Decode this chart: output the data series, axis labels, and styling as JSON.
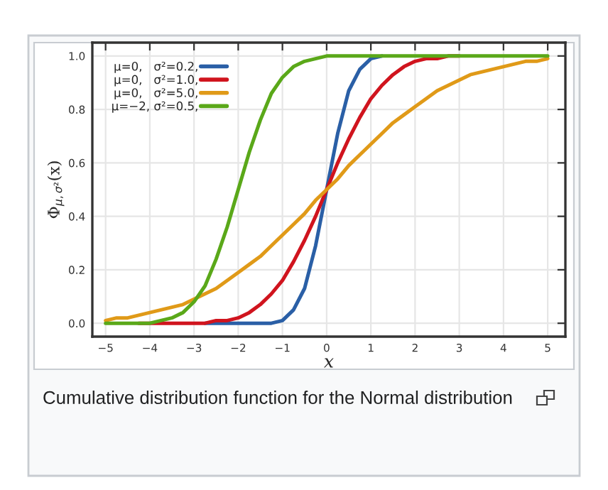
{
  "chart_data": {
    "type": "line",
    "xlabel": "x",
    "ylabel": "Φ$_{μ,σ²}$(x)",
    "x": [
      -5,
      -4.75,
      -4.5,
      -4.25,
      -4,
      -3.75,
      -3.5,
      -3.25,
      -3,
      -2.75,
      -2.5,
      -2.25,
      -2,
      -1.75,
      -1.5,
      -1.25,
      -1,
      -0.75,
      -0.5,
      -0.25,
      0,
      0.25,
      0.5,
      0.75,
      1,
      1.25,
      1.5,
      1.75,
      2,
      2.25,
      2.5,
      2.75,
      3,
      3.25,
      3.5,
      3.75,
      4,
      4.25,
      4.5,
      4.75,
      5
    ],
    "series": [
      {
        "name": "μ=0,   σ²=0.2,",
        "color": "#2a5fa6",
        "values": [
          null,
          null,
          null,
          null,
          null,
          null,
          null,
          null,
          null,
          0,
          0,
          0,
          0,
          0,
          0,
          0,
          0.01,
          0.05,
          0.13,
          0.29,
          0.5,
          0.71,
          0.87,
          0.95,
          0.99,
          1,
          null,
          null,
          null,
          null,
          null,
          null,
          null,
          null,
          null,
          null,
          null,
          null,
          null,
          null,
          null
        ]
      },
      {
        "name": "μ=0,   σ²=1.0,",
        "color": "#d0141e",
        "values": [
          null,
          null,
          null,
          0,
          0,
          0,
          0,
          0,
          0,
          0,
          0.01,
          0.01,
          0.02,
          0.04,
          0.07,
          0.11,
          0.16,
          0.23,
          0.31,
          0.4,
          0.5,
          0.6,
          0.69,
          0.77,
          0.84,
          0.89,
          0.93,
          0.96,
          0.98,
          0.99,
          0.99,
          1,
          1,
          null,
          null,
          null,
          null,
          null,
          null,
          null,
          null
        ]
      },
      {
        "name": "μ=0,   σ²=5.0,",
        "color": "#e09a18",
        "values": [
          0.01,
          0.02,
          0.02,
          0.03,
          0.04,
          0.05,
          0.06,
          0.07,
          0.09,
          0.11,
          0.13,
          0.16,
          0.19,
          0.22,
          0.25,
          0.29,
          0.33,
          0.37,
          0.41,
          0.46,
          0.5,
          0.54,
          0.59,
          0.63,
          0.67,
          0.71,
          0.75,
          0.78,
          0.81,
          0.84,
          0.87,
          0.89,
          0.91,
          0.93,
          0.94,
          0.95,
          0.96,
          0.97,
          0.98,
          0.98,
          0.99
        ]
      },
      {
        "name": "μ=−2, σ²=0.5,",
        "color": "#5aa819",
        "values": [
          0,
          0,
          0,
          0,
          0,
          0.01,
          0.02,
          0.04,
          0.08,
          0.14,
          0.24,
          0.36,
          0.5,
          0.64,
          0.76,
          0.86,
          0.92,
          0.96,
          0.98,
          0.99,
          1,
          1,
          1,
          1,
          1,
          1,
          1,
          1,
          1,
          1,
          1,
          1,
          1,
          1,
          1,
          1,
          1,
          1,
          1,
          1,
          1
        ]
      }
    ],
    "xlim": [
      -5.3,
      5.4
    ],
    "ylim": [
      -0.05,
      1.05
    ],
    "xticks": [
      {
        "value": -5,
        "label": "−5"
      },
      {
        "value": -4,
        "label": "−4"
      },
      {
        "value": -3,
        "label": "−3"
      },
      {
        "value": -2,
        "label": "−2"
      },
      {
        "value": -1,
        "label": "−1"
      },
      0,
      1,
      2,
      3,
      4,
      5
    ],
    "yticks": [
      {
        "value": 0,
        "label": "0.0"
      },
      {
        "value": 0.2,
        "label": "0.2"
      },
      {
        "value": 0.4,
        "label": "0.4"
      },
      {
        "value": 0.6,
        "label": "0.6"
      },
      {
        "value": 0.8,
        "label": "0.8"
      },
      {
        "value": 1,
        "label": "1.0"
      }
    ],
    "grid": true,
    "legend": "top left",
    "marker": "none",
    "line_style": "solid",
    "annotations": [
      "Cumulative distribution function for the Normal distribution"
    ]
  }
}
